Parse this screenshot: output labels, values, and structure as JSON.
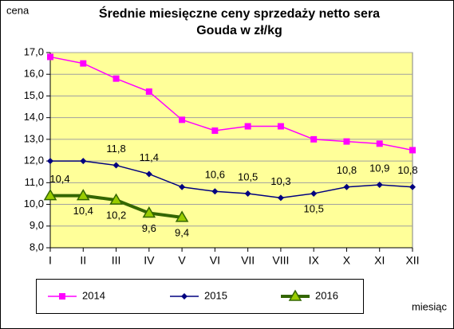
{
  "chart_data": {
    "type": "line",
    "title": [
      "Średnie miesięczne ceny sprzedaży netto sera",
      "Gouda w zł/kg"
    ],
    "y_label": "cena",
    "x_label": "miesiąc",
    "categories": [
      "I",
      "II",
      "III",
      "IV",
      "V",
      "VI",
      "VII",
      "VIII",
      "IX",
      "X",
      "XI",
      "XII"
    ],
    "series": [
      {
        "name": "2014",
        "color": "#ff00ff",
        "marker": "square",
        "values": [
          16.8,
          16.5,
          15.8,
          15.2,
          13.9,
          13.4,
          13.6,
          13.6,
          13.0,
          12.9,
          12.8,
          12.5
        ]
      },
      {
        "name": "2015",
        "color": "#000080",
        "marker": "diamond",
        "values": [
          12.0,
          12.0,
          11.8,
          11.4,
          10.8,
          10.6,
          10.5,
          10.3,
          10.5,
          10.8,
          10.9,
          10.8
        ],
        "value_labels": [
          null,
          null,
          "11,8",
          "11,4",
          null,
          "10,6",
          "10,5",
          "10,3",
          "10,5",
          "10,8",
          "10,9",
          "10,8"
        ]
      },
      {
        "name": "2016",
        "color": "#336600",
        "marker": "triangle",
        "marker_fill": "#99cc00",
        "values": [
          10.4,
          10.4,
          10.2,
          9.6,
          9.4,
          null,
          null,
          null,
          null,
          null,
          null,
          null
        ],
        "value_labels": [
          "10,4",
          "10,4",
          "10,2",
          "9,6",
          "9,4",
          null,
          null,
          null,
          null,
          null,
          null,
          null
        ]
      }
    ],
    "ylim": [
      8,
      17
    ],
    "yticks": [
      {
        "value": 8,
        "label": "8,0"
      },
      {
        "value": 9,
        "label": "9,0"
      },
      {
        "value": 10,
        "label": "10,0"
      },
      {
        "value": 11,
        "label": "11,0"
      },
      {
        "value": 12,
        "label": "12,0"
      },
      {
        "value": 13,
        "label": "13,0"
      },
      {
        "value": 14,
        "label": "14,0"
      },
      {
        "value": 15,
        "label": "15,0"
      },
      {
        "value": 16,
        "label": "16,0"
      },
      {
        "value": 17,
        "label": "17,0"
      }
    ],
    "grid": true,
    "legend": "bottom",
    "plot_background": "#ffff99"
  }
}
